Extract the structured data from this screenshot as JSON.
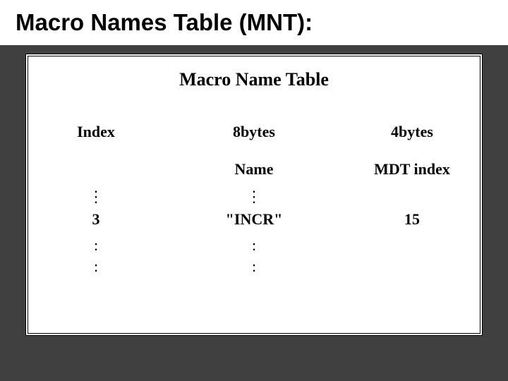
{
  "slide": {
    "title": "Macro Names Table (MNT):",
    "background_color": "#404040",
    "title_bar_bg": "#ffffff",
    "title_color": "#000000",
    "title_fontsize": 33
  },
  "table": {
    "title": "Macro Name Table",
    "title_fontsize": 26,
    "title_font": "Times New Roman",
    "background_color": "#ffffff",
    "border_color": "#000000",
    "columns": [
      {
        "header": "Index",
        "subheader": "",
        "width_pct": 30
      },
      {
        "header": "8bytes",
        "subheader": "Name",
        "width_pct": 40
      },
      {
        "header": "4bytes",
        "subheader": "MDT index",
        "width_pct": 30
      }
    ],
    "row": {
      "index": "3",
      "name": "\"INCR\"",
      "mdt_index": "15"
    },
    "vdots_before": {
      "col1": "⋮",
      "col2": "⋮",
      "col3": ""
    },
    "vdots_after1": {
      "col1": ":",
      "col2": ":",
      "col3": ""
    },
    "vdots_after2": {
      "col1": ":",
      "col2": ":",
      "col3": ""
    },
    "font_color": "#000000"
  }
}
